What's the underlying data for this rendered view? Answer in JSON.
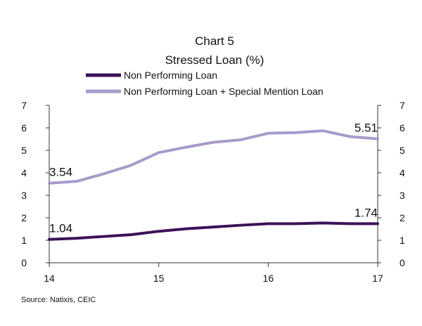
{
  "chart_data": {
    "type": "line",
    "title": "Chart 5",
    "subtitle": "Stressed Loan (%)",
    "source": "Source: Natixis, CEIC",
    "ylim": [
      0,
      7
    ],
    "yticks": [
      "0",
      "1",
      "2",
      "3",
      "4",
      "5",
      "6",
      "7"
    ],
    "xlim": [
      14,
      17
    ],
    "xticks": [
      "14",
      "15",
      "16",
      "17"
    ],
    "grid": false,
    "legend_position": "top",
    "x": [
      14,
      14.25,
      14.5,
      14.75,
      15,
      15.25,
      15.5,
      15.75,
      16,
      16.25,
      16.5,
      16.75,
      17
    ],
    "series": [
      {
        "name": "Non Performing Loan",
        "color": "#3d1259",
        "values": [
          1.04,
          1.09,
          1.17,
          1.25,
          1.4,
          1.51,
          1.59,
          1.67,
          1.74,
          1.74,
          1.77,
          1.74,
          1.74
        ],
        "labels": [
          {
            "index": 0,
            "text": "1.04"
          },
          {
            "index": 12,
            "text": "1.74"
          }
        ]
      },
      {
        "name": "Non Performing Loan + Special Mention Loan",
        "color": "#a79bca",
        "values": [
          3.54,
          3.62,
          3.96,
          4.34,
          4.9,
          5.14,
          5.36,
          5.47,
          5.76,
          5.79,
          5.87,
          5.61,
          5.51
        ],
        "labels": [
          {
            "index": 0,
            "text": "3.54"
          },
          {
            "index": 12,
            "text": "5.51"
          }
        ]
      }
    ]
  }
}
